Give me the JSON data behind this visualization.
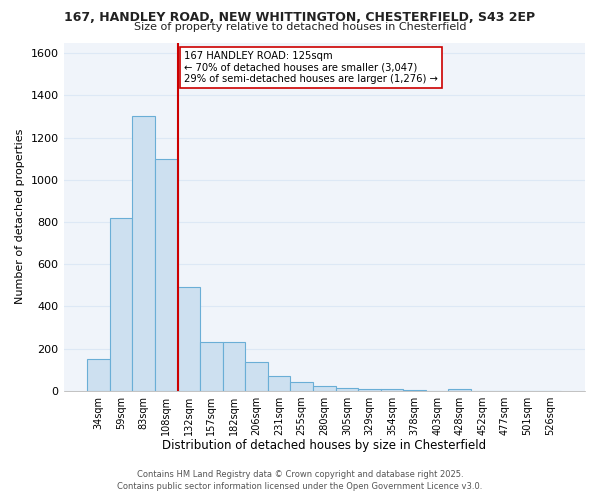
{
  "title_line1": "167, HANDLEY ROAD, NEW WHITTINGTON, CHESTERFIELD, S43 2EP",
  "title_line2": "Size of property relative to detached houses in Chesterfield",
  "bar_labels": [
    "34sqm",
    "59sqm",
    "83sqm",
    "108sqm",
    "132sqm",
    "157sqm",
    "182sqm",
    "206sqm",
    "231sqm",
    "255sqm",
    "280sqm",
    "305sqm",
    "329sqm",
    "354sqm",
    "378sqm",
    "403sqm",
    "428sqm",
    "452sqm",
    "477sqm",
    "501sqm",
    "526sqm"
  ],
  "bar_values": [
    150,
    820,
    1300,
    1100,
    490,
    230,
    230,
    135,
    70,
    42,
    22,
    12,
    10,
    8,
    3,
    2,
    7,
    0,
    0,
    0,
    0
  ],
  "bar_color": "#cde0f0",
  "bar_edge_color": "#6aaed6",
  "ylabel": "Number of detached properties",
  "xlabel": "Distribution of detached houses by size in Chesterfield",
  "ylim": [
    0,
    1650
  ],
  "yticks": [
    0,
    200,
    400,
    600,
    800,
    1000,
    1200,
    1400,
    1600
  ],
  "vline_color": "#cc0000",
  "vline_index": 3.5,
  "annotation_text": "167 HANDLEY ROAD: 125sqm\n← 70% of detached houses are smaller (3,047)\n29% of semi-detached houses are larger (1,276) →",
  "annotation_box_color": "#ffffff",
  "annotation_box_edge": "#cc0000",
  "footer_line1": "Contains HM Land Registry data © Crown copyright and database right 2025.",
  "footer_line2": "Contains public sector information licensed under the Open Government Licence v3.0.",
  "background_color": "#ffffff",
  "plot_bg_color": "#f0f4fa",
  "grid_color": "#dde8f5"
}
